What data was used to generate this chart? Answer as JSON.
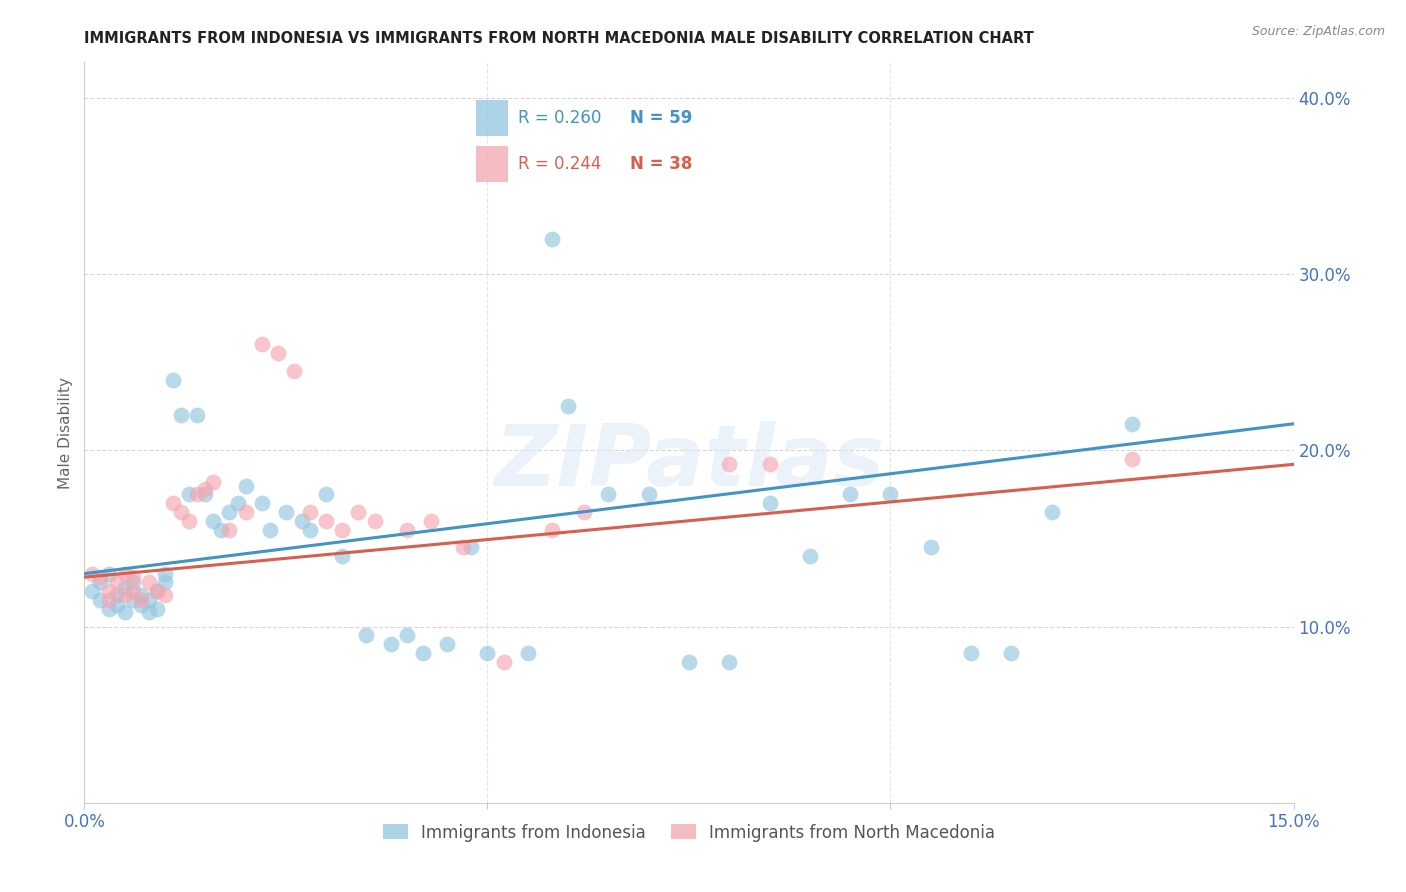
{
  "title": "IMMIGRANTS FROM INDONESIA VS IMMIGRANTS FROM NORTH MACEDONIA MALE DISABILITY CORRELATION CHART",
  "source": "Source: ZipAtlas.com",
  "ylabel": "Male Disability",
  "xlim": [
    0.0,
    0.15
  ],
  "ylim": [
    0.0,
    0.42
  ],
  "yticks": [
    0.1,
    0.2,
    0.3,
    0.4
  ],
  "ytick_labels": [
    "10.0%",
    "20.0%",
    "30.0%",
    "40.0%"
  ],
  "xticks": [
    0.0,
    0.05,
    0.1,
    0.15
  ],
  "xtick_labels": [
    "0.0%",
    "",
    "",
    "15.0%"
  ],
  "indonesia_color": "#92c5de",
  "north_macedonia_color": "#f4a6b0",
  "trend_indonesia_color": "#4393c3",
  "trend_north_macedonia_color": "#d6604d",
  "legend_R_indonesia": "0.260",
  "legend_N_indonesia": "59",
  "legend_R_north_macedonia": "0.244",
  "legend_N_north_macedonia": "38",
  "watermark": "ZIPatlas",
  "background_color": "#ffffff",
  "grid_color": "#cccccc",
  "axis_label_color": "#4472c4",
  "indonesia_x": [
    0.001,
    0.002,
    0.002,
    0.003,
    0.003,
    0.004,
    0.004,
    0.005,
    0.005,
    0.006,
    0.006,
    0.007,
    0.007,
    0.008,
    0.008,
    0.009,
    0.009,
    0.01,
    0.01,
    0.011,
    0.012,
    0.013,
    0.014,
    0.015,
    0.016,
    0.017,
    0.018,
    0.019,
    0.02,
    0.022,
    0.023,
    0.025,
    0.027,
    0.028,
    0.03,
    0.032,
    0.035,
    0.038,
    0.04,
    0.042,
    0.045,
    0.048,
    0.05,
    0.055,
    0.058,
    0.06,
    0.065,
    0.07,
    0.075,
    0.08,
    0.085,
    0.09,
    0.095,
    0.1,
    0.105,
    0.11,
    0.115,
    0.12,
    0.13
  ],
  "indonesia_y": [
    0.12,
    0.115,
    0.125,
    0.11,
    0.13,
    0.112,
    0.118,
    0.108,
    0.122,
    0.115,
    0.125,
    0.112,
    0.118,
    0.108,
    0.115,
    0.12,
    0.11,
    0.125,
    0.13,
    0.24,
    0.22,
    0.175,
    0.22,
    0.175,
    0.16,
    0.155,
    0.165,
    0.17,
    0.18,
    0.17,
    0.155,
    0.165,
    0.16,
    0.155,
    0.175,
    0.14,
    0.095,
    0.09,
    0.095,
    0.085,
    0.09,
    0.145,
    0.085,
    0.085,
    0.32,
    0.225,
    0.175,
    0.175,
    0.08,
    0.08,
    0.17,
    0.14,
    0.175,
    0.175,
    0.145,
    0.085,
    0.085,
    0.165,
    0.215
  ],
  "north_macedonia_x": [
    0.001,
    0.002,
    0.003,
    0.003,
    0.004,
    0.005,
    0.005,
    0.006,
    0.006,
    0.007,
    0.008,
    0.009,
    0.01,
    0.011,
    0.012,
    0.013,
    0.014,
    0.015,
    0.016,
    0.018,
    0.02,
    0.022,
    0.024,
    0.026,
    0.028,
    0.03,
    0.032,
    0.034,
    0.036,
    0.04,
    0.043,
    0.047,
    0.052,
    0.058,
    0.062,
    0.08,
    0.085,
    0.13
  ],
  "north_macedonia_y": [
    0.13,
    0.128,
    0.12,
    0.115,
    0.125,
    0.118,
    0.13,
    0.12,
    0.128,
    0.115,
    0.125,
    0.12,
    0.118,
    0.17,
    0.165,
    0.16,
    0.175,
    0.178,
    0.182,
    0.155,
    0.165,
    0.26,
    0.255,
    0.245,
    0.165,
    0.16,
    0.155,
    0.165,
    0.16,
    0.155,
    0.16,
    0.145,
    0.08,
    0.155,
    0.165,
    0.192,
    0.192,
    0.195
  ],
  "trend_indo_x0": 0.0,
  "trend_indo_x1": 0.15,
  "trend_indo_y0": 0.13,
  "trend_indo_y1": 0.215,
  "trend_nm_x0": 0.0,
  "trend_nm_x1": 0.15,
  "trend_nm_y0": 0.128,
  "trend_nm_y1": 0.192
}
